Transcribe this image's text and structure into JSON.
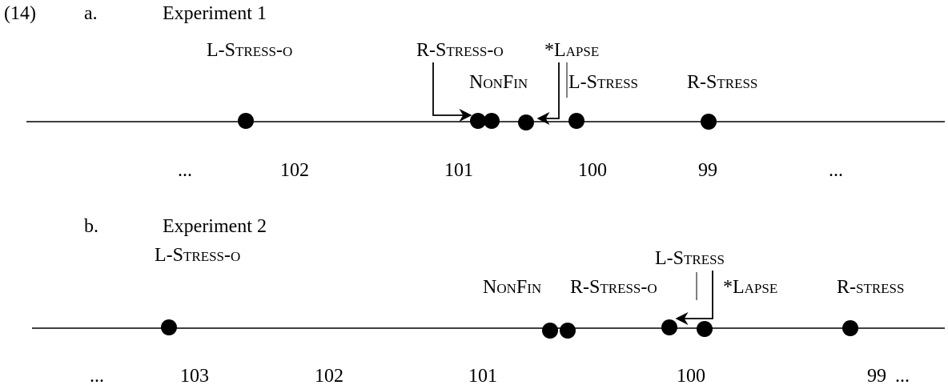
{
  "example_number": "(14)",
  "panels": [
    {
      "letter": "a.",
      "title": "Experiment 1",
      "labels": [
        "L-Stress-o",
        "R-Stress-o",
        "*Lapse",
        "NonFin",
        "L-Stress",
        "R-Stress"
      ],
      "scale": [
        "...",
        "102",
        "101",
        "100",
        "99",
        "..."
      ]
    },
    {
      "letter": "b.",
      "title": "Experiment 2",
      "labels": [
        "L-Stress-o",
        "L-Stress",
        "NonFin",
        "R-Stress-o",
        "*Lapse",
        "R-stress"
      ],
      "scale": [
        "...",
        "103",
        "102",
        "101",
        "100",
        "99",
        "..."
      ]
    }
  ]
}
